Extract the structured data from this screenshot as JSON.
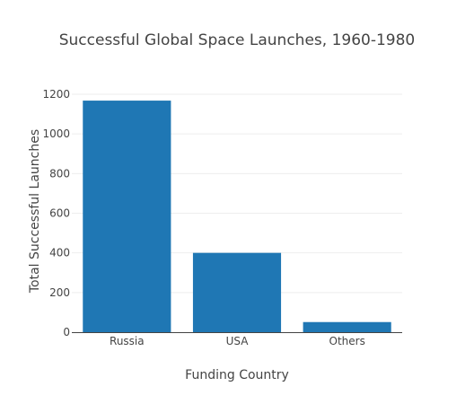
{
  "chart_data": {
    "type": "bar",
    "title": "Successful Global Space Launches, 1960-1980",
    "xlabel": "Funding Country",
    "ylabel": "Total Successful Launches",
    "categories": [
      "Russia",
      "USA",
      "Others"
    ],
    "values": [
      1168,
      400,
      51
    ],
    "ylim": [
      0,
      1200
    ],
    "yticks": [
      0,
      200,
      400,
      600,
      800,
      1000,
      1200
    ],
    "grid": true,
    "bar_color": "#1f77b4"
  }
}
